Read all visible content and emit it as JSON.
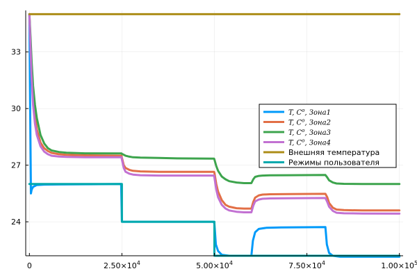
{
  "chart_data": {
    "type": "line",
    "xlim": [
      -1000,
      101000
    ],
    "ylim": [
      22.2,
      35.2
    ],
    "grid": true,
    "legend_position": "right",
    "x_ticks": [
      {
        "value": 0,
        "label": "0",
        "exp": ""
      },
      {
        "value": 25000,
        "label": "2.50×10",
        "exp": "4"
      },
      {
        "value": 50000,
        "label": "5.00×10",
        "exp": "4"
      },
      {
        "value": 75000,
        "label": "7.50×10",
        "exp": "4"
      },
      {
        "value": 100000,
        "label": "1.00×10",
        "exp": "5"
      }
    ],
    "y_ticks": [
      {
        "value": 24,
        "label": "24"
      },
      {
        "value": 27,
        "label": "27"
      },
      {
        "value": 30,
        "label": "30"
      },
      {
        "value": 33,
        "label": "33"
      }
    ],
    "series": [
      {
        "name": "T,C°,Зона1",
        "name_main": "T, C",
        "name_sup": "o",
        "name_suffix": ", Зона1",
        "color": "#009AFA",
        "x": [
          0,
          200,
          400,
          600,
          1000,
          2000,
          4000,
          8000,
          15000,
          24800,
          25000,
          25200,
          49800,
          50000,
          50400,
          51000,
          52000,
          54000,
          58000,
          60000,
          60400,
          61000,
          62000,
          64000,
          68000,
          80000,
          80400,
          81000,
          82000,
          84000,
          100000
        ],
        "y": [
          35,
          30,
          25.5,
          25.7,
          25.85,
          25.95,
          25.97,
          25.98,
          25.99,
          26.0,
          24.05,
          24.0,
          24.0,
          23.9,
          22.8,
          22.45,
          22.25,
          22.2,
          22.2,
          22.2,
          23.0,
          23.45,
          23.62,
          23.68,
          23.7,
          23.72,
          22.8,
          22.35,
          22.2,
          22.15,
          22.15
        ]
      },
      {
        "name": "T,C°,Зона2",
        "name_main": "T, C",
        "name_sup": "o",
        "name_suffix": ", Зона2",
        "color": "#E26F46",
        "x": [
          0,
          300,
          600,
          1000,
          1500,
          2000,
          3000,
          4000,
          5000,
          6000,
          8000,
          10000,
          15000,
          24900,
          25000,
          25500,
          26000,
          27000,
          28000,
          30000,
          35000,
          40000,
          49900,
          50000,
          50500,
          51000,
          52000,
          53000,
          54000,
          56000,
          58000,
          60000,
          60500,
          61000,
          62000,
          63000,
          65000,
          70000,
          80000,
          80500,
          81000,
          82000,
          83000,
          85000,
          90000,
          100000
        ],
        "y": [
          35,
          33.5,
          32,
          30.6,
          29.6,
          28.9,
          28.2,
          27.9,
          27.75,
          27.65,
          27.58,
          27.55,
          27.52,
          27.5,
          27.4,
          27.0,
          26.85,
          26.75,
          26.7,
          26.67,
          26.65,
          26.65,
          26.65,
          26.6,
          26.0,
          25.6,
          25.15,
          24.9,
          24.8,
          24.72,
          24.7,
          24.7,
          25.05,
          25.28,
          25.4,
          25.44,
          25.46,
          25.47,
          25.48,
          25.3,
          25.0,
          24.75,
          24.65,
          24.62,
          24.6,
          24.6
        ]
      },
      {
        "name": "T,C°,Зона3",
        "name_main": "T, C",
        "name_sup": "o",
        "name_suffix": ", Зона3",
        "color": "#3DA44D",
        "x": [
          0,
          300,
          600,
          1000,
          1500,
          2000,
          3000,
          4000,
          5000,
          6000,
          8000,
          10000,
          15000,
          24900,
          25000,
          25500,
          26000,
          27000,
          28000,
          30000,
          35000,
          40000,
          49900,
          50000,
          50500,
          51000,
          52000,
          53000,
          54000,
          56000,
          58000,
          60000,
          60500,
          61000,
          62000,
          63000,
          65000,
          70000,
          80000,
          80500,
          81000,
          82000,
          83000,
          85000,
          90000,
          100000
        ],
        "y": [
          35,
          33.8,
          32.5,
          31.2,
          30.2,
          29.5,
          28.6,
          28.15,
          27.9,
          27.78,
          27.7,
          27.66,
          27.63,
          27.62,
          27.6,
          27.55,
          27.5,
          27.45,
          27.42,
          27.4,
          27.38,
          27.36,
          27.35,
          27.3,
          26.95,
          26.7,
          26.4,
          26.25,
          26.15,
          26.08,
          26.05,
          26.05,
          26.25,
          26.38,
          26.43,
          26.45,
          26.46,
          26.47,
          26.48,
          26.35,
          26.2,
          26.08,
          26.03,
          26.01,
          26.0,
          26.0
        ]
      },
      {
        "name": "T,C°,Зона4",
        "name_main": "T, C",
        "name_sup": "o",
        "name_suffix": ", Зона4",
        "color": "#C271D2",
        "x": [
          0,
          300,
          600,
          1000,
          1500,
          2000,
          3000,
          4000,
          5000,
          6000,
          8000,
          10000,
          15000,
          24900,
          25000,
          25500,
          26000,
          27000,
          28000,
          30000,
          35000,
          40000,
          49900,
          50000,
          50500,
          51000,
          52000,
          53000,
          54000,
          56000,
          58000,
          60000,
          60500,
          61000,
          62000,
          63000,
          65000,
          70000,
          80000,
          80500,
          81000,
          82000,
          83000,
          85000,
          90000,
          100000
        ],
        "y": [
          35,
          33.2,
          31.6,
          30.2,
          29.2,
          28.6,
          28.0,
          27.72,
          27.58,
          27.5,
          27.46,
          27.44,
          27.42,
          27.42,
          27.3,
          26.85,
          26.65,
          26.55,
          26.5,
          26.47,
          26.45,
          26.45,
          26.45,
          26.35,
          25.7,
          25.3,
          24.9,
          24.7,
          24.6,
          24.53,
          24.5,
          24.5,
          24.85,
          25.08,
          25.18,
          25.22,
          25.24,
          25.25,
          25.26,
          25.05,
          24.8,
          24.58,
          24.48,
          24.45,
          24.44,
          24.43
        ]
      },
      {
        "name": "Внешняя температура",
        "name_main": "Внешняя температура",
        "name_sup": "",
        "name_suffix": "",
        "color": "#AC8D18",
        "x": [
          0,
          100000
        ],
        "y": [
          35,
          35
        ]
      },
      {
        "name": "Режимы пользователя",
        "name_main": "Режимы пользователя",
        "name_sup": "",
        "name_suffix": "",
        "color": "#00A9AD",
        "x": [
          0,
          25000,
          25000,
          50000,
          50000,
          100000
        ],
        "y": [
          26,
          26,
          24,
          24,
          22.2,
          22.2
        ]
      }
    ]
  }
}
